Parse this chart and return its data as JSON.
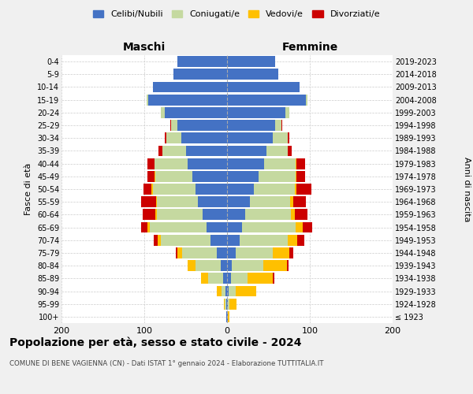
{
  "age_groups": [
    "100+",
    "95-99",
    "90-94",
    "85-89",
    "80-84",
    "75-79",
    "70-74",
    "65-69",
    "60-64",
    "55-59",
    "50-54",
    "45-49",
    "40-44",
    "35-39",
    "30-34",
    "25-29",
    "20-24",
    "15-19",
    "10-14",
    "5-9",
    "0-4"
  ],
  "birth_years": [
    "≤ 1923",
    "1924-1928",
    "1929-1933",
    "1934-1938",
    "1939-1943",
    "1944-1948",
    "1949-1953",
    "1954-1958",
    "1959-1963",
    "1964-1968",
    "1969-1973",
    "1974-1978",
    "1979-1983",
    "1984-1988",
    "1989-1993",
    "1994-1998",
    "1999-2003",
    "2004-2008",
    "2009-2013",
    "2014-2018",
    "2019-2023"
  ],
  "colors": {
    "celibi": "#4472C4",
    "coniugati": "#c5d9a0",
    "vedovi": "#ffc000",
    "divorziati": "#cc0000"
  },
  "maschi": {
    "celibi": [
      1,
      1,
      2,
      5,
      8,
      12,
      20,
      25,
      30,
      35,
      38,
      42,
      48,
      50,
      55,
      60,
      75,
      95,
      90,
      65,
      60
    ],
    "coniugati": [
      0,
      2,
      5,
      18,
      30,
      42,
      60,
      68,
      55,
      50,
      52,
      45,
      40,
      28,
      18,
      8,
      5,
      2,
      0,
      0,
      0
    ],
    "vedovi": [
      0,
      1,
      5,
      8,
      10,
      6,
      4,
      3,
      2,
      1,
      1,
      1,
      0,
      0,
      0,
      0,
      0,
      0,
      0,
      0,
      0
    ],
    "divorziati": [
      0,
      0,
      0,
      0,
      0,
      2,
      5,
      8,
      15,
      18,
      10,
      8,
      8,
      5,
      2,
      1,
      0,
      0,
      0,
      0,
      0
    ]
  },
  "femmine": {
    "celibi": [
      1,
      1,
      2,
      5,
      6,
      10,
      15,
      18,
      22,
      28,
      32,
      38,
      45,
      48,
      55,
      58,
      70,
      95,
      88,
      62,
      58
    ],
    "coniugati": [
      0,
      2,
      8,
      20,
      38,
      45,
      58,
      65,
      55,
      48,
      50,
      45,
      38,
      25,
      18,
      8,
      5,
      2,
      0,
      0,
      0
    ],
    "vedovi": [
      2,
      8,
      25,
      30,
      28,
      20,
      12,
      8,
      5,
      4,
      2,
      1,
      1,
      0,
      0,
      0,
      0,
      0,
      0,
      0,
      0
    ],
    "divorziati": [
      0,
      0,
      0,
      2,
      2,
      5,
      8,
      12,
      15,
      15,
      18,
      10,
      10,
      5,
      2,
      1,
      0,
      0,
      0,
      0,
      0
    ]
  },
  "title": "Popolazione per età, sesso e stato civile - 2024",
  "subtitle": "COMUNE DI BENE VAGIENNA (CN) - Dati ISTAT 1° gennaio 2024 - Elaborazione TUTTITALIA.IT",
  "ylabel_left": "Fasce di età",
  "ylabel_right": "Anni di nascita",
  "xlabel_left": "Maschi",
  "xlabel_right": "Femmine",
  "xlim": 200,
  "bg_color": "#f0f0f0",
  "plot_bg": "#ffffff",
  "grid_color": "#cccccc"
}
